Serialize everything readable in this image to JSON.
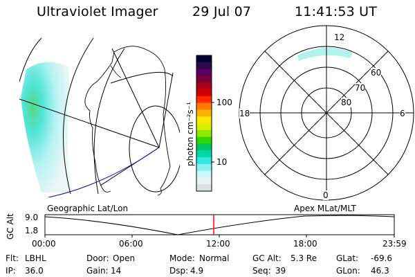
{
  "header": {
    "instrument": "Ultraviolet Imager",
    "date": "29 Jul 07",
    "time": "11:41:53 UT"
  },
  "colorbar": {
    "label": "photon cm⁻²s⁻¹",
    "ticks": [
      "100",
      "10"
    ],
    "colors": [
      "#000033",
      "#2a0a4a",
      "#5a0060",
      "#7a0038",
      "#a80018",
      "#d00000",
      "#ff2a00",
      "#ff7a00",
      "#ffb000",
      "#ffe600",
      "#d8f000",
      "#8ee800",
      "#30d800",
      "#00c860",
      "#00d8a8",
      "#30e8e0",
      "#88f0f0",
      "#c8f8f8",
      "#e8f4f4",
      "#d8e0e0"
    ]
  },
  "polar": {
    "labels": [
      "12",
      "18",
      "6",
      "0",
      "60",
      "70",
      "80"
    ]
  },
  "timeline": {
    "ylabel": "GC Alt",
    "ymax": "9.0",
    "ymin": "1.8",
    "left_caption": "Geographic Lat/Lon",
    "right_caption": "Apex MLat/MLT",
    "xticks": [
      "00:00",
      "06:00",
      "12:00",
      "18:00",
      "23:59"
    ],
    "marker_time": "11:41:53"
  },
  "footer": {
    "row1": [
      {
        "label": "Flt:",
        "value": "LBHL"
      },
      {
        "label": "Door:",
        "value": "Open"
      },
      {
        "label": "Mode:",
        "value": "Normal"
      },
      {
        "label": "GC Alt:",
        "value": "5.3 Re"
      },
      {
        "label": "GLat:",
        "value": "-69.6"
      }
    ],
    "row2": [
      {
        "label": "IP:",
        "value": "36.0"
      },
      {
        "label": "Gain:",
        "value": "14"
      },
      {
        "label": "Dsp:",
        "value": "4.9"
      },
      {
        "label": "Seq:",
        "value": "39"
      },
      {
        "label": "GLon:",
        "value": "46.3"
      }
    ]
  },
  "colors": {
    "marker": "#ff0000",
    "track": "#0000cc"
  }
}
